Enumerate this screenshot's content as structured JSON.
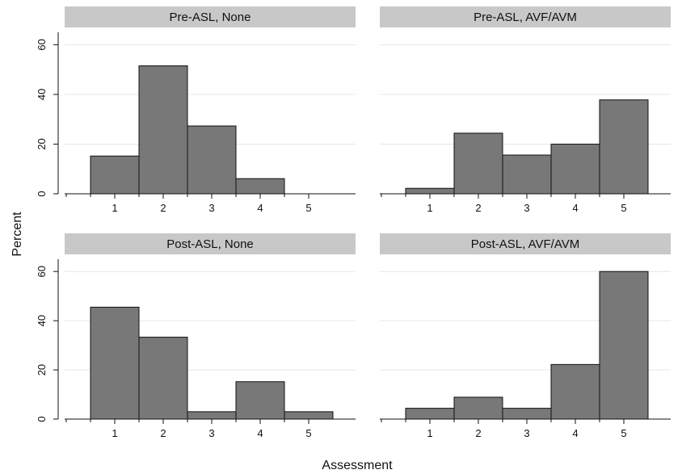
{
  "chart_data": {
    "type": "bar",
    "layout": "facet-2x2",
    "xlabel": "Assessment",
    "ylabel": "Percent",
    "ylim": [
      0,
      65
    ],
    "yticks": [
      0,
      20,
      40,
      60
    ],
    "xticks": [
      "1",
      "2",
      "3",
      "4",
      "5"
    ],
    "grid": true,
    "colors": {
      "bar": "#787878",
      "strip": "#c8c8c8",
      "grid": "#e6e6e6"
    },
    "panels": [
      {
        "name": "Pre-ASL, None",
        "categories": [
          "1",
          "2",
          "3",
          "4",
          "5"
        ],
        "values": [
          15.2,
          51.5,
          27.3,
          6.1,
          0
        ]
      },
      {
        "name": "Pre-ASL, AVF/AVM",
        "categories": [
          "1",
          "2",
          "3",
          "4",
          "5"
        ],
        "values": [
          2.2,
          24.4,
          15.6,
          20.0,
          37.8
        ]
      },
      {
        "name": "Post-ASL, None",
        "categories": [
          "1",
          "2",
          "3",
          "4",
          "5"
        ],
        "values": [
          45.5,
          33.3,
          3.0,
          15.2,
          3.0
        ]
      },
      {
        "name": "Post-ASL, AVF/AVM",
        "categories": [
          "1",
          "2",
          "3",
          "4",
          "5"
        ],
        "values": [
          4.4,
          8.9,
          4.4,
          22.2,
          60.0
        ]
      }
    ]
  }
}
